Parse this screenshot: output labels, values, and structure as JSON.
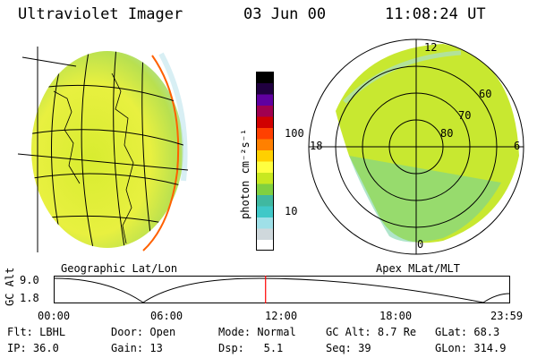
{
  "header": {
    "instrument": "Ultraviolet Imager",
    "date": "03 Jun 00",
    "time": "11:08:24 UT"
  },
  "left_panel": {
    "caption": "Geographic Lat/Lon"
  },
  "right_panel": {
    "caption": "Apex MLat/MLT",
    "mlt_labels": [
      "12",
      "18",
      "6",
      "0"
    ],
    "mlat_labels": [
      "60",
      "70",
      "80"
    ]
  },
  "colorbar": {
    "unit_label": "photon cm⁻²s⁻¹",
    "ticks": [
      "100",
      "10"
    ],
    "tick_values": [
      100,
      10
    ],
    "scale": "log",
    "colors": [
      "#ffffff",
      "#cfd8dc",
      "#9fe0e8",
      "#40c8c8",
      "#40b8a0",
      "#80d040",
      "#c8e820",
      "#ffff40",
      "#ffd000",
      "#ff8000",
      "#ff4000",
      "#d00000",
      "#a00050",
      "#6000a0",
      "#200040",
      "#000000"
    ]
  },
  "timeline": {
    "axis_label": "GC Alt",
    "y_ticks": [
      "9.0",
      "1.8"
    ],
    "x_ticks": [
      "00:00",
      "06:00",
      "12:00",
      "18:00",
      "23:59"
    ],
    "current_time_hours": 11.14,
    "marker_color": "#ff0000"
  },
  "info": {
    "row1": [
      {
        "key": "Flt:",
        "value": "LBHL"
      },
      {
        "key": "Door:",
        "value": "Open"
      },
      {
        "key": "Mode:",
        "value": "Normal"
      },
      {
        "key": "GC Alt:",
        "value": "8.7 Re"
      },
      {
        "key": "GLat:",
        "value": "68.3"
      }
    ],
    "row2": [
      {
        "key": "IP:",
        "value": "36.0"
      },
      {
        "key": "Gain:",
        "value": "13"
      },
      {
        "key": "Dsp:",
        "value": "5.1"
      },
      {
        "key": "Seq:",
        "value": "39"
      },
      {
        "key": "GLon:",
        "value": "314.9"
      }
    ]
  }
}
